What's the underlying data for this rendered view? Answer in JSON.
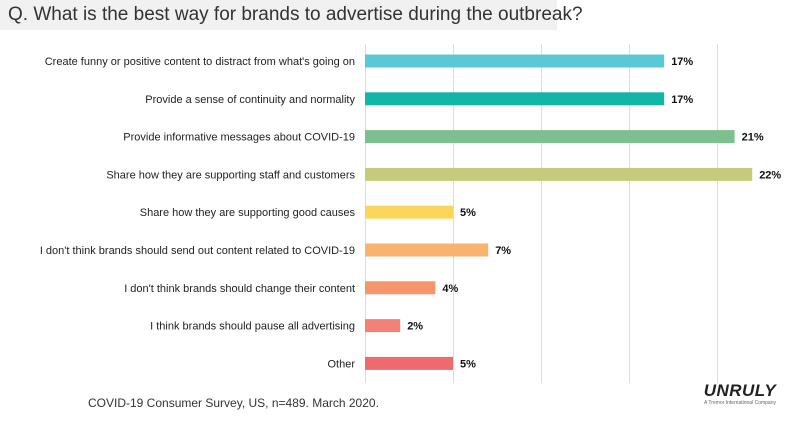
{
  "header": {
    "question": "Q. What is the best way for brands to advertise during the outbreak?"
  },
  "footer": {
    "note": "COVID-19 Consumer Survey, US, n=489. March 2020."
  },
  "logo": {
    "text": "UNRULY",
    "tagline": "A Tremor International Company"
  },
  "chart_data": {
    "type": "bar",
    "orientation": "horizontal",
    "categories": [
      "Create funny or positive content to distract from what's going on",
      "Provide a sense of continuity and normality",
      "Provide informative messages about COVID-19",
      "Share how they are supporting staff and customers",
      "Share how they are supporting good causes",
      "I don't think brands should send out content related to COVID-19",
      "I don't think brands should change their content",
      "I think brands should pause all advertising",
      "Other"
    ],
    "values": [
      17,
      17,
      21,
      22,
      5,
      7,
      4,
      2,
      5
    ],
    "data_labels": [
      "17%",
      "17%",
      "21%",
      "22%",
      "5%",
      "7%",
      "4%",
      "2%",
      "5%"
    ],
    "colors": [
      "#5bc8d6",
      "#13b5a6",
      "#7dc08f",
      "#c6cb7c",
      "#fbd65a",
      "#f9b270",
      "#f6966d",
      "#f2817a",
      "#ee6b6b"
    ],
    "xlim": [
      0,
      25
    ],
    "grid": true
  }
}
